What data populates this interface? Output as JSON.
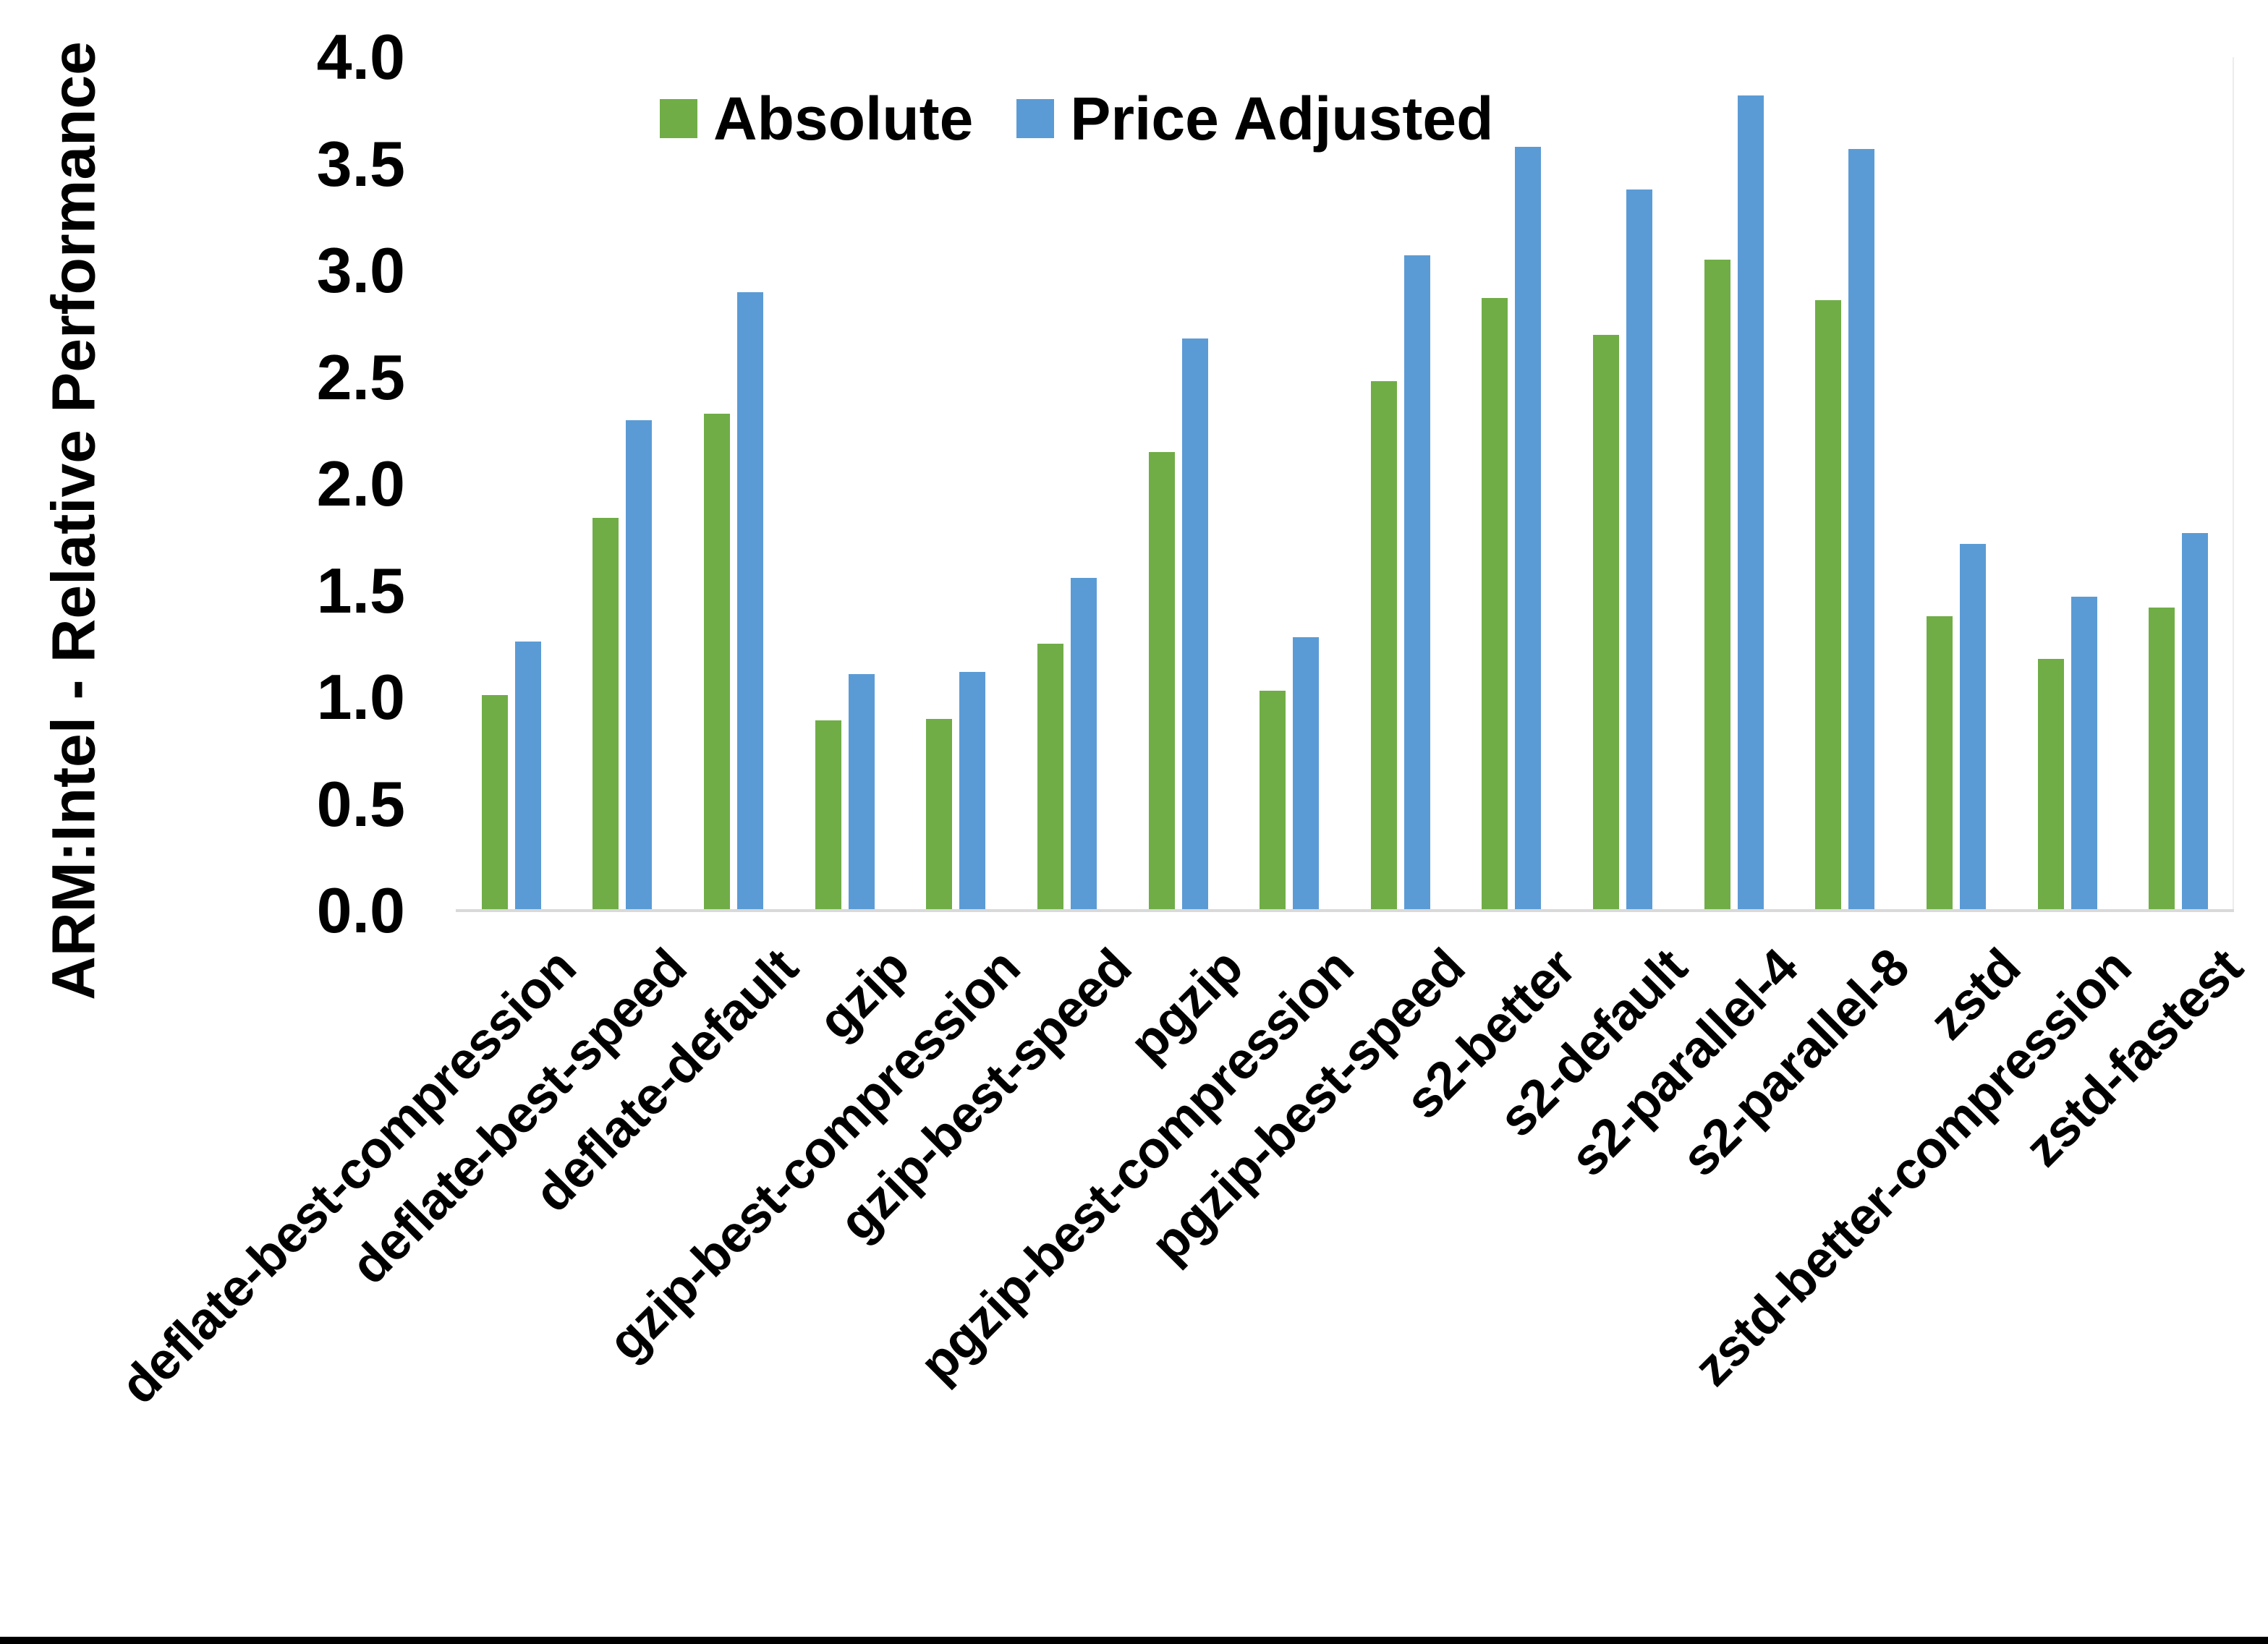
{
  "chart_data": {
    "type": "bar",
    "title": "",
    "ylabel": "ARM:Intel - Relative Performance",
    "xlabel": "",
    "ylim": [
      0.0,
      4.0
    ],
    "ytick_step": 0.5,
    "yticks": [
      "0.0",
      "0.5",
      "1.0",
      "1.5",
      "2.0",
      "2.5",
      "3.0",
      "3.5",
      "4.0"
    ],
    "grid": false,
    "legend_position": "top-center",
    "x_label_rotation_deg": 45,
    "categories": [
      "deflate-best-compression",
      "deflate-best-speed",
      "deflate-default",
      "gzip",
      "gzip-best-compression",
      "gzip-best-speed",
      "pgzip",
      "pgzip-best-compression",
      "pgzip-best-speed",
      "s2-better",
      "s2-default",
      "s2-parallel-4",
      "s2-parallel-8",
      "zstd",
      "zstd-better-compression",
      "zstd-fastest"
    ],
    "series": [
      {
        "name": "Absolute",
        "color": "#70AD47",
        "values": [
          1.01,
          1.84,
          2.33,
          0.89,
          0.9,
          1.25,
          2.15,
          1.03,
          2.48,
          2.87,
          2.7,
          3.05,
          2.86,
          1.38,
          1.18,
          1.42
        ]
      },
      {
        "name": "Price Adjusted",
        "color": "#5B9BD5",
        "values": [
          1.26,
          2.3,
          2.9,
          1.11,
          1.12,
          1.56,
          2.68,
          1.28,
          3.07,
          3.58,
          3.38,
          3.82,
          3.57,
          1.72,
          1.47,
          1.77
        ]
      }
    ],
    "axis_color": "#D9D9D9",
    "text_color": "#000000",
    "background": "#FFFFFF"
  },
  "frame": {
    "bottom_bar_color": "#000000"
  }
}
